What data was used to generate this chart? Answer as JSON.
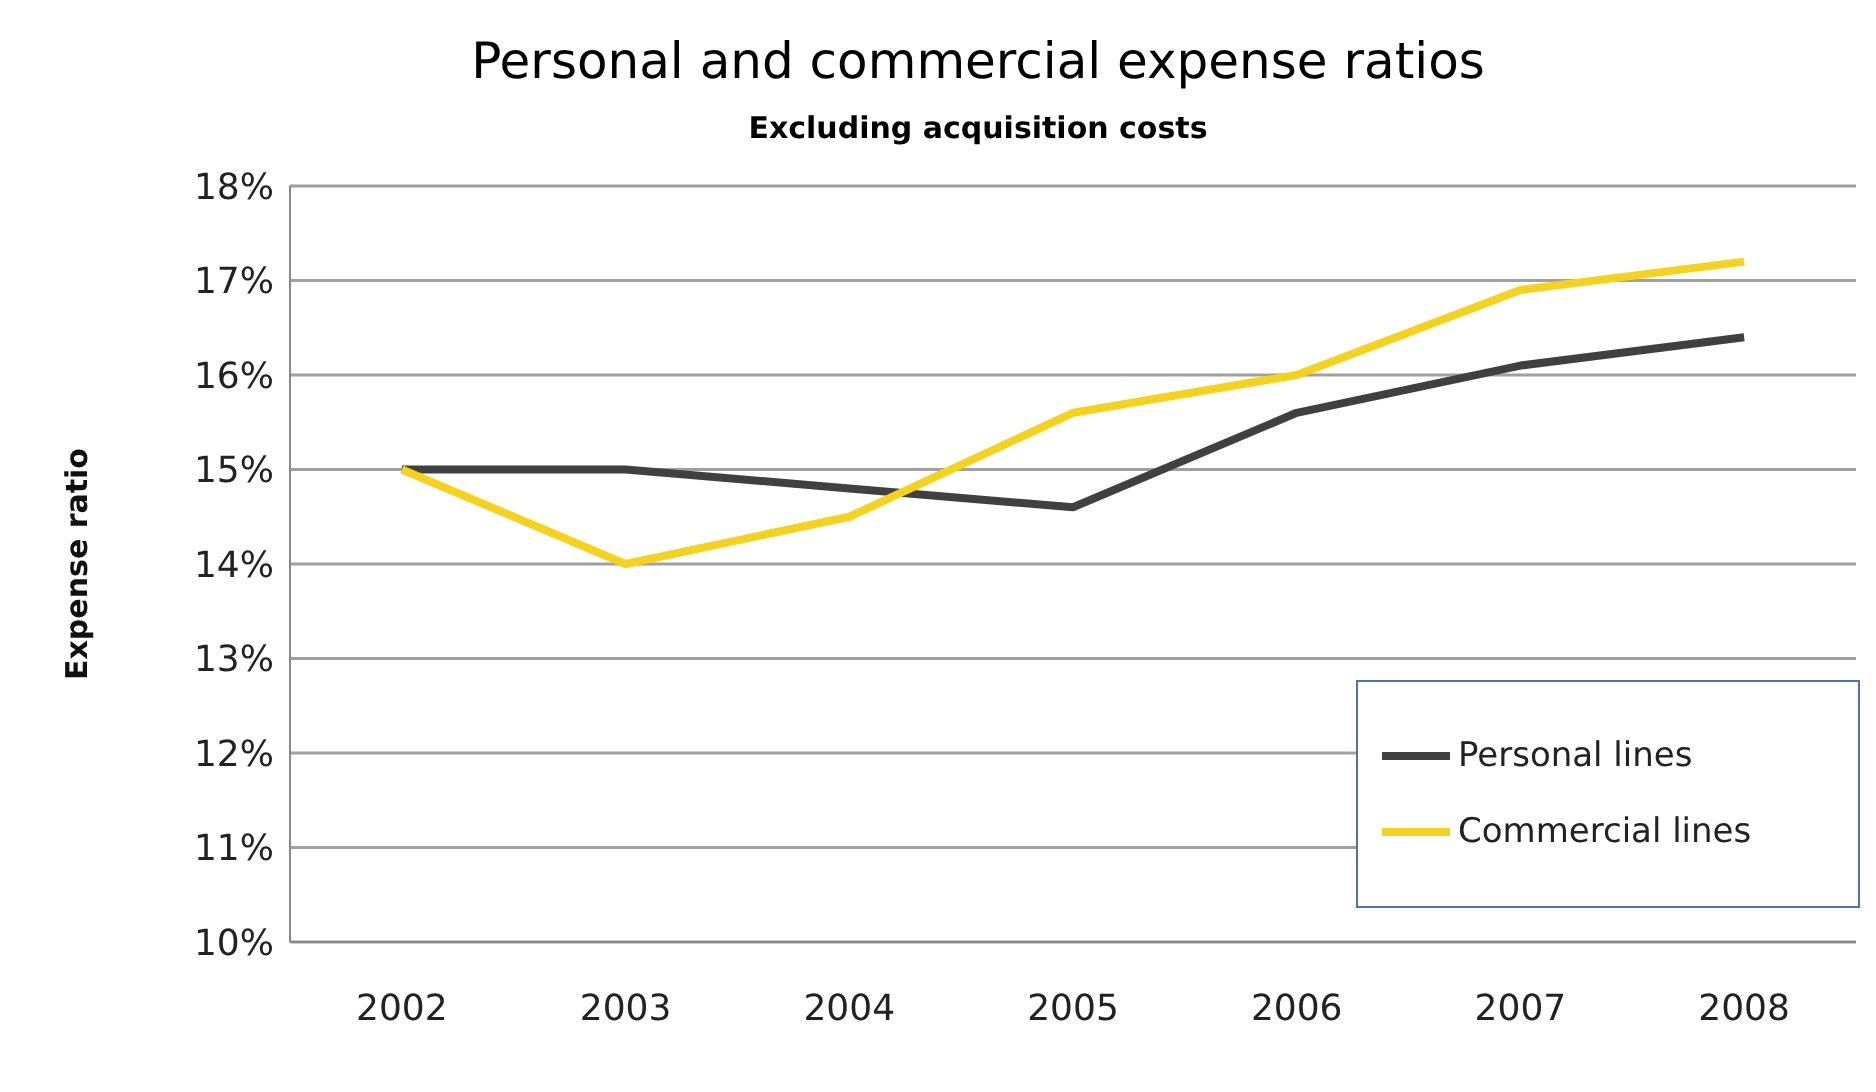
{
  "chart_data": {
    "type": "line",
    "title": "Personal and commercial expense ratios",
    "subtitle": "Excluding acquisition costs",
    "ylabel": "Expense ratio",
    "categories": [
      "2002",
      "2003",
      "2004",
      "2005",
      "2006",
      "2007",
      "2008"
    ],
    "series": [
      {
        "name": "Personal lines",
        "color": "#404040",
        "values": [
          15,
          15,
          14.8,
          14.6,
          15.6,
          16.1,
          16.4
        ]
      },
      {
        "name": "Commercial lines",
        "color": "#f5d31c",
        "values": [
          15,
          14,
          14.5,
          15.6,
          16,
          16.9,
          17.2
        ]
      }
    ],
    "ylim": [
      10,
      18
    ],
    "yticks": [
      {
        "value": 10,
        "label": "10%"
      },
      {
        "value": 11,
        "label": "11%"
      },
      {
        "value": 12,
        "label": "12%"
      },
      {
        "value": 13,
        "label": "13%"
      },
      {
        "value": 14,
        "label": "14%"
      },
      {
        "value": 15,
        "label": "15%"
      },
      {
        "value": 16,
        "label": "16%"
      },
      {
        "value": 17,
        "label": "17%"
      },
      {
        "value": 18,
        "label": "18%"
      }
    ],
    "grid": "y",
    "legend": "bottom right",
    "marker": "none",
    "line_style": "solid"
  }
}
